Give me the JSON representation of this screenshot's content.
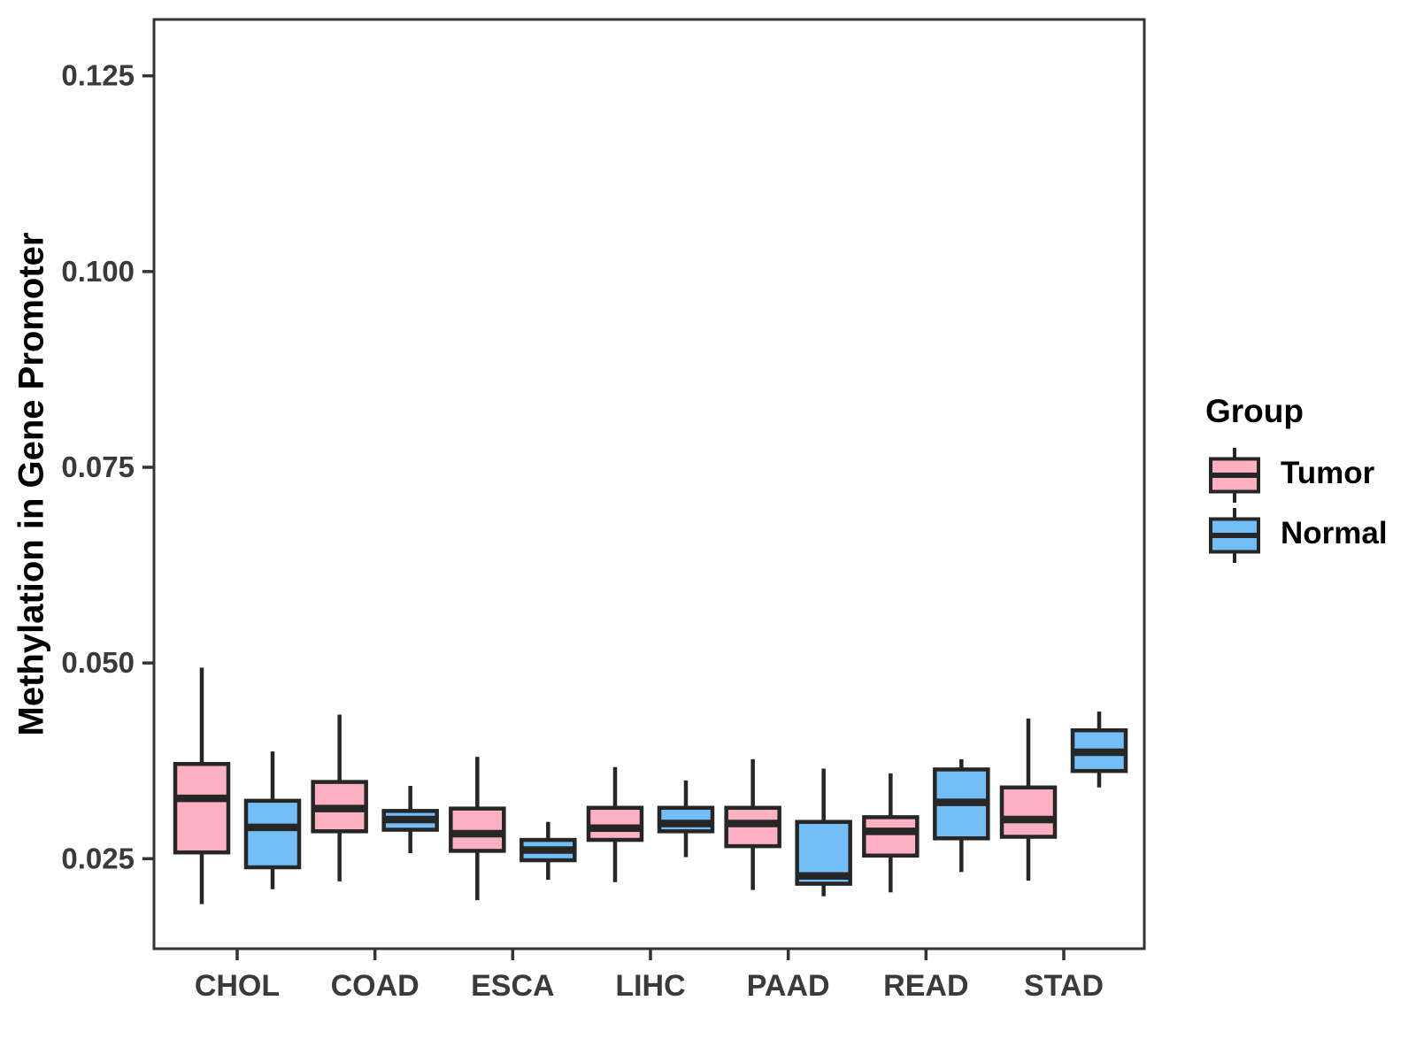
{
  "figure": {
    "ylabel": "Methylation in Gene Promoter",
    "legend": {
      "title": "Group",
      "entries": [
        {
          "label": "Tumor",
          "color": "#FCB0C2"
        },
        {
          "label": "Normal",
          "color": "#73BEF7"
        }
      ]
    },
    "colors": {
      "tumor_fill": "#FCB0C2",
      "normal_fill": "#73BEF7",
      "box_stroke": "#262626",
      "panel_border": "#333333",
      "tick_text": "#3a3a3a"
    }
  },
  "chart_data": {
    "type": "boxplot",
    "title": "",
    "xlabel": "",
    "ylabel": "Methylation in Gene Promoter",
    "categories": [
      "CHOL",
      "COAD",
      "ESCA",
      "LIHC",
      "PAAD",
      "READ",
      "STAD"
    ],
    "yticks": [
      0.025,
      0.05,
      0.075,
      0.1,
      0.125
    ],
    "ylim": [
      0.0135,
      0.1322
    ],
    "grid": false,
    "legend_position": "right",
    "series": [
      {
        "name": "Tumor",
        "color": "#FCB0C2",
        "boxes": [
          {
            "category": "CHOL",
            "whisker_low": 0.0192,
            "q1": 0.0258,
            "median": 0.0327,
            "q3": 0.0371,
            "whisker_high": 0.0494
          },
          {
            "category": "COAD",
            "whisker_low": 0.0221,
            "q1": 0.0285,
            "median": 0.0314,
            "q3": 0.0348,
            "whisker_high": 0.0434
          },
          {
            "category": "ESCA",
            "whisker_low": 0.0197,
            "q1": 0.026,
            "median": 0.0282,
            "q3": 0.0314,
            "whisker_high": 0.038
          },
          {
            "category": "LIHC",
            "whisker_low": 0.022,
            "q1": 0.0274,
            "median": 0.0289,
            "q3": 0.0315,
            "whisker_high": 0.0367
          },
          {
            "category": "PAAD",
            "whisker_low": 0.021,
            "q1": 0.0266,
            "median": 0.0295,
            "q3": 0.0315,
            "whisker_high": 0.0377
          },
          {
            "category": "READ",
            "whisker_low": 0.0207,
            "q1": 0.0254,
            "median": 0.0285,
            "q3": 0.0303,
            "whisker_high": 0.0359
          },
          {
            "category": "STAD",
            "whisker_low": 0.0222,
            "q1": 0.0278,
            "median": 0.03,
            "q3": 0.0341,
            "whisker_high": 0.0429
          }
        ]
      },
      {
        "name": "Normal",
        "color": "#73BEF7",
        "boxes": [
          {
            "category": "CHOL",
            "whisker_low": 0.0211,
            "q1": 0.0239,
            "median": 0.029,
            "q3": 0.0324,
            "whisker_high": 0.0387
          },
          {
            "category": "COAD",
            "whisker_low": 0.0257,
            "q1": 0.0287,
            "median": 0.03,
            "q3": 0.0311,
            "whisker_high": 0.0343
          },
          {
            "category": "ESCA",
            "whisker_low": 0.0223,
            "q1": 0.0248,
            "median": 0.0261,
            "q3": 0.0274,
            "whisker_high": 0.0297
          },
          {
            "category": "LIHC",
            "whisker_low": 0.0252,
            "q1": 0.0285,
            "median": 0.0295,
            "q3": 0.0315,
            "whisker_high": 0.035
          },
          {
            "category": "PAAD",
            "whisker_low": 0.0202,
            "q1": 0.0218,
            "median": 0.0228,
            "q3": 0.0297,
            "whisker_high": 0.0365
          },
          {
            "category": "READ",
            "whisker_low": 0.0233,
            "q1": 0.0276,
            "median": 0.0322,
            "q3": 0.0364,
            "whisker_high": 0.0377
          },
          {
            "category": "STAD",
            "whisker_low": 0.0341,
            "q1": 0.0362,
            "median": 0.0386,
            "q3": 0.0414,
            "whisker_high": 0.0438
          }
        ]
      }
    ]
  }
}
